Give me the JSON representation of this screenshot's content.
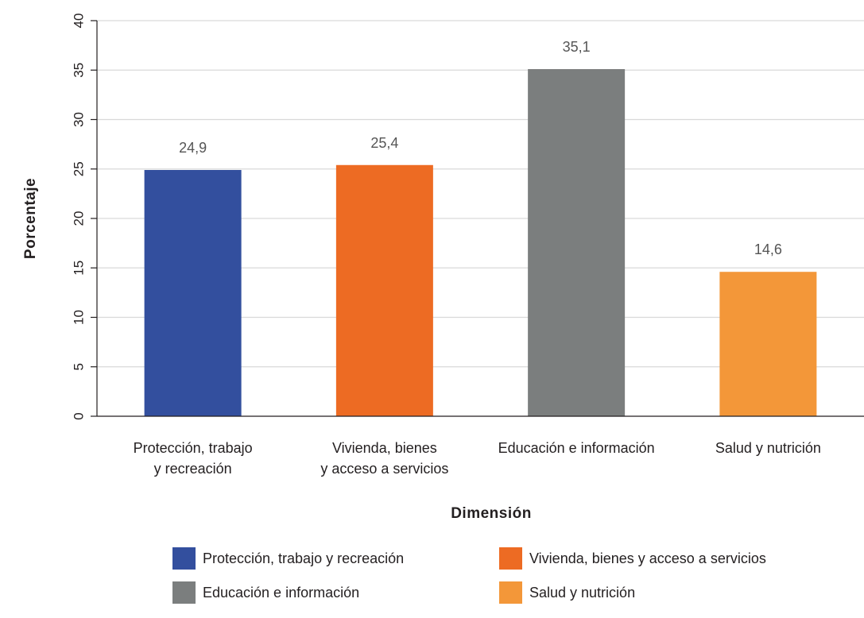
{
  "chart_data": {
    "type": "bar",
    "categories": [
      "Protección, trabajo y recreación",
      "Vivienda, bienes y acceso a servicios",
      "Educación e información",
      "Salud y nutrición"
    ],
    "category_tick_labels": [
      [
        "Protección, trabajo",
        "y recreación"
      ],
      [
        "Vivienda, bienes",
        "y acceso a servicios"
      ],
      [
        "Educación e información"
      ],
      [
        "Salud y nutrición"
      ]
    ],
    "values": [
      24.9,
      25.4,
      35.1,
      14.6
    ],
    "data_labels": [
      "24,9",
      "25,4",
      "35,1",
      "14,6"
    ],
    "colors": [
      "#334f9e",
      "#ed6b23",
      "#7b7e7e",
      "#f39739"
    ],
    "xlabel": "Dimensión",
    "ylabel": "Porcentaje",
    "ylim": [
      0,
      40
    ],
    "yticks": [
      0,
      5,
      10,
      15,
      20,
      25,
      30,
      35,
      40
    ],
    "grid": true,
    "legend_position": "bottom",
    "legend": [
      {
        "label": "Protección, trabajo y recreación",
        "color": "#334f9e"
      },
      {
        "label": "Vivienda, bienes y acceso a servicios",
        "color": "#ed6b23"
      },
      {
        "label": "Educación e información",
        "color": "#7b7e7e"
      },
      {
        "label": "Salud y nutrición",
        "color": "#f39739"
      }
    ]
  }
}
